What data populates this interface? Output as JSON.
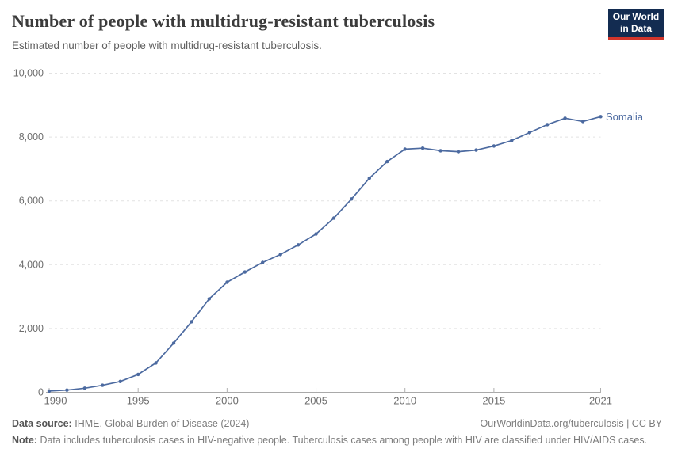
{
  "header": {
    "logo": {
      "line1": "Our World",
      "line2": "in Data"
    }
  },
  "colors": {
    "series_line": "#4c6aa0",
    "entity_label": "#4c6aa0",
    "grid": "#e2e2e2",
    "axis": "#a9a9a9",
    "tick": "#b0b0b0",
    "tick_label": "#6e6e6e",
    "logo_bg": "#132c51",
    "logo_accent": "#d2352b"
  },
  "chart_data": {
    "type": "line",
    "title": "Number of people with multidrug-resistant tuberculosis",
    "subtitle": "Estimated number of people with multidrug-resistant tuberculosis.",
    "xlabel": "",
    "ylabel": "",
    "xlim": [
      1990,
      2021
    ],
    "ylim": [
      0,
      10000
    ],
    "xticks": [
      1990,
      1995,
      2000,
      2005,
      2010,
      2015,
      2021
    ],
    "yticks": [
      0,
      2000,
      4000,
      6000,
      8000,
      10000
    ],
    "grid": "horizontal-dashed",
    "legend": "end-of-line-label",
    "x": [
      1990,
      1991,
      1992,
      1993,
      1994,
      1995,
      1996,
      1997,
      1998,
      1999,
      2000,
      2001,
      2002,
      2003,
      2004,
      2005,
      2006,
      2007,
      2008,
      2009,
      2010,
      2011,
      2012,
      2013,
      2014,
      2015,
      2016,
      2017,
      2018,
      2019,
      2020,
      2021
    ],
    "series": [
      {
        "name": "Somalia",
        "color": "#4c6aa0",
        "values": [
          40,
          70,
          130,
          220,
          340,
          560,
          920,
          1540,
          2210,
          2930,
          3450,
          3770,
          4070,
          4320,
          4620,
          4960,
          5460,
          6060,
          6710,
          7230,
          7620,
          7650,
          7570,
          7540,
          7590,
          7720,
          7890,
          8140,
          8390,
          8590,
          8490,
          8640
        ]
      }
    ]
  },
  "footer": {
    "source_label": "Data source:",
    "source_text": "IHME, Global Burden of Disease (2024)",
    "attribution": "OurWorldinData.org/tuberculosis | CC BY",
    "note_label": "Note:",
    "note_text": "Data includes tuberculosis cases in HIV-negative people. Tuberculosis cases among people with HIV are classified under HIV/AIDS cases."
  }
}
